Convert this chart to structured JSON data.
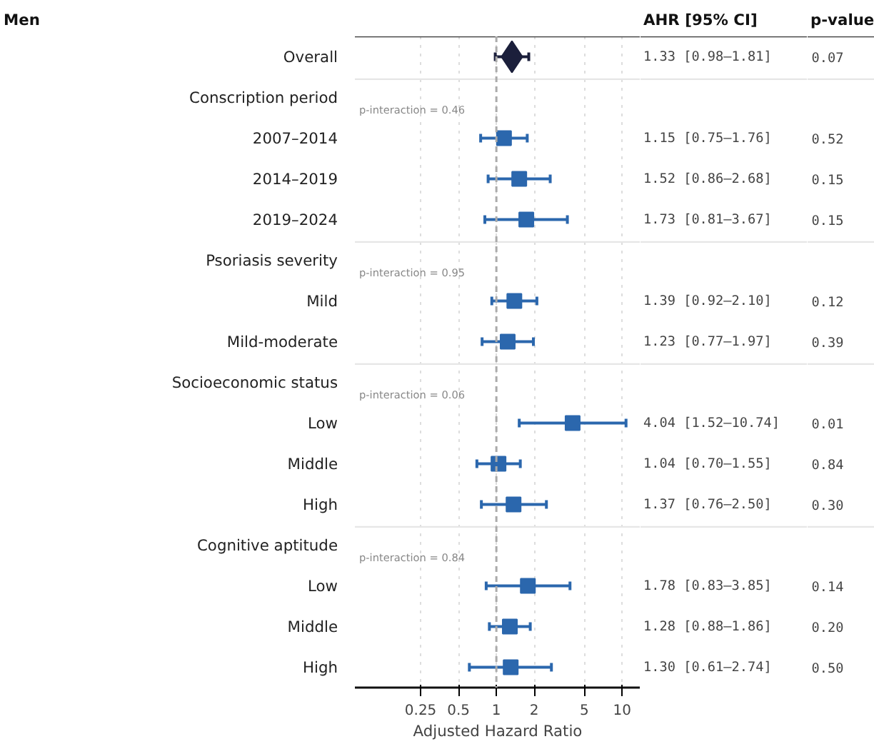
{
  "chart_data": {
    "type": "scatter",
    "orientation": "horizontal",
    "log": "x",
    "title": "Men",
    "xlabel": "Adjusted Hazard Ratio",
    "categories": [
      "Overall",
      "Conscription period",
      "2007–2014",
      "2014–2019",
      "2019–2024",
      "Psoriasis severity",
      "Mild",
      "Mild-moderate",
      "Socioeconomic status",
      "Low",
      "Middle",
      "High",
      "Cognitive aptitude",
      "Low",
      "Middle",
      "High"
    ],
    "series": [
      {
        "color": "#1b1f3b",
        "marker": "diamond",
        "values": [
          1.33,
          null,
          null,
          null,
          null,
          null,
          null,
          null,
          null,
          null,
          null,
          null,
          null,
          null,
          null,
          null
        ],
        "errors": [
          [
            0.98,
            1.81
          ],
          null,
          null,
          null,
          null,
          null,
          null,
          null,
          null,
          null,
          null,
          null,
          null,
          null,
          null,
          null
        ]
      },
      {
        "color": "#2b67ad",
        "marker": "square",
        "values": [
          null,
          null,
          1.15,
          1.52,
          1.73,
          null,
          1.39,
          1.23,
          null,
          4.04,
          1.04,
          1.37,
          null,
          1.78,
          1.28,
          1.3
        ],
        "errors": [
          null,
          null,
          [
            0.75,
            1.76
          ],
          [
            0.86,
            2.68
          ],
          [
            0.81,
            3.67
          ],
          null,
          [
            0.92,
            2.1
          ],
          [
            0.77,
            1.97
          ],
          null,
          [
            1.52,
            10.74
          ],
          [
            0.7,
            1.55
          ],
          [
            0.76,
            2.5
          ],
          null,
          [
            0.83,
            3.85
          ],
          [
            0.88,
            1.86
          ],
          [
            0.61,
            2.74
          ]
        ]
      }
    ],
    "xlim": [
      0.075,
      14
    ],
    "xticks": [
      0.25,
      0.5,
      1,
      2,
      5,
      10
    ],
    "grid": "x",
    "ref_lines": [
      {
        "axis": "x",
        "value": 1,
        "color": "#aaaaaa",
        "line_style": "dashed"
      }
    ],
    "annotations": [
      "AHR [95% CI]",
      "p-value",
      "p-interaction = 0.46",
      "p-interaction = 0.95",
      "p-interaction = 0.06",
      "p-interaction = 0.84",
      "1.33 [0.98–1.81]",
      "1.15 [0.75–1.76]",
      "1.52 [0.86–2.68]",
      "1.73 [0.81–3.67]",
      "1.39 [0.92–2.10]",
      "1.23 [0.77–1.97]",
      "4.04 [1.52–10.74]",
      "1.04 [0.70–1.55]",
      "1.37 [0.76–2.50]",
      "1.78 [0.83–3.85]",
      "1.28 [0.88–1.86]",
      "1.30 [0.61–2.74]",
      "0.07",
      "0.52",
      "0.15",
      "0.15",
      "0.12",
      "0.39",
      "0.01",
      "0.84",
      "0.30",
      "0.14",
      "0.20",
      "0.50"
    ]
  }
}
